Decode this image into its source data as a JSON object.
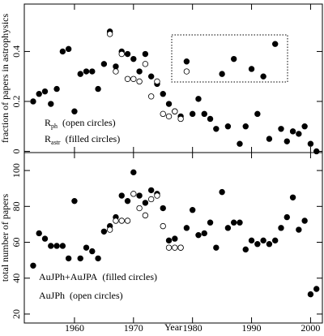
{
  "chart_data": [
    {
      "type": "scatter",
      "ylabel": "fraction of papers in astrophysics",
      "xaxis_position": "top",
      "xlim": [
        1951.5,
        2002
      ],
      "xticks": [
        1960,
        1970,
        1980,
        1990,
        2000
      ],
      "ylim": [
        -0.005,
        0.59
      ],
      "yticks": [
        0,
        0.2,
        0.4
      ],
      "series": [
        {
          "name": "R",
          "name_sub": "astr",
          "name_suffix": "(filled circles)",
          "marker": "filled",
          "color": "#000000",
          "x": [
            1953,
            1954,
            1955,
            1956,
            1957,
            1958,
            1959,
            1960,
            1961,
            1962,
            1963,
            1964,
            1965,
            1966,
            1967,
            1968,
            1969,
            1970,
            1971,
            1972,
            1973,
            1974,
            1975,
            1976,
            1977,
            1978,
            1979,
            1980,
            1981,
            1982,
            1983,
            1984,
            1985,
            1986,
            1987,
            1988,
            1989,
            1990,
            1991,
            1992,
            1993,
            1994,
            1995,
            1996,
            1997,
            1998,
            1999,
            2000,
            2001
          ],
          "values": [
            0.2,
            0.23,
            0.24,
            0.19,
            0.25,
            0.4,
            0.41,
            0.16,
            0.31,
            0.32,
            0.32,
            0.25,
            0.35,
            0.48,
            0.34,
            0.4,
            0.39,
            0.37,
            0.32,
            0.39,
            0.3,
            0.27,
            0.23,
            0.19,
            0.16,
            0.14,
            0.36,
            0.15,
            0.21,
            0.15,
            0.13,
            0.09,
            0.31,
            0.1,
            0.37,
            0.03,
            0.1,
            0.33,
            0.15,
            0.3,
            0.05,
            0.43,
            0.09,
            0.04,
            0.08,
            0.07,
            0.1,
            0.03,
            0.0
          ]
        },
        {
          "name": "R",
          "name_sub": "ph",
          "name_suffix": "(open circles)",
          "marker": "open",
          "color": "#000000",
          "x": [
            1966,
            1967,
            1968,
            1969,
            1970,
            1971,
            1972,
            1973,
            1974,
            1975,
            1976,
            1977,
            1978,
            1979
          ],
          "values": [
            0.47,
            0.32,
            0.39,
            0.29,
            0.29,
            0.28,
            0.35,
            0.22,
            0.28,
            0.15,
            0.14,
            0.16,
            0.13,
            0.32
          ]
        }
      ]
    },
    {
      "type": "scatter",
      "ylabel": "total number of papers",
      "xlabel": "Year",
      "xaxis_position": "bottom",
      "xlim": [
        1951.5,
        2002
      ],
      "xticks": [
        1960,
        1970,
        1980,
        1990,
        2000
      ],
      "ylim": [
        15,
        110
      ],
      "yticks": [
        20,
        40,
        60,
        80,
        100
      ],
      "series": [
        {
          "name": "AuJPh+AuJPA",
          "name_suffix": "(filled circles)",
          "marker": "filled",
          "color": "#000000",
          "x": [
            1953,
            1954,
            1955,
            1956,
            1957,
            1958,
            1959,
            1960,
            1961,
            1962,
            1963,
            1964,
            1965,
            1966,
            1967,
            1968,
            1969,
            1970,
            1971,
            1972,
            1973,
            1974,
            1975,
            1976,
            1977,
            1978,
            1979,
            1980,
            1981,
            1982,
            1983,
            1984,
            1985,
            1986,
            1987,
            1988,
            1989,
            1990,
            1991,
            1992,
            1993,
            1994,
            1995,
            1996,
            1997,
            1998,
            1999,
            2000,
            2001
          ],
          "values": [
            47,
            65,
            62,
            58,
            58,
            58,
            51,
            83,
            51,
            57,
            55,
            51,
            66,
            69,
            74,
            86,
            83,
            99,
            86,
            82,
            89,
            87,
            79,
            61,
            62,
            57,
            68,
            78,
            64,
            65,
            71,
            57,
            88,
            68,
            71,
            71,
            56,
            61,
            59,
            61,
            59,
            61,
            68,
            74,
            85,
            67,
            72,
            31,
            34
          ]
        },
        {
          "name": "AuJPh",
          "name_suffix": "(open circles)",
          "marker": "open",
          "color": "#000000",
          "x": [
            1966,
            1967,
            1968,
            1969,
            1970,
            1971,
            1972,
            1973,
            1974,
            1975,
            1976,
            1977,
            1978
          ],
          "values": [
            67,
            72,
            72,
            72,
            87,
            79,
            75,
            84,
            86,
            69,
            57,
            57,
            57
          ]
        }
      ]
    }
  ]
}
